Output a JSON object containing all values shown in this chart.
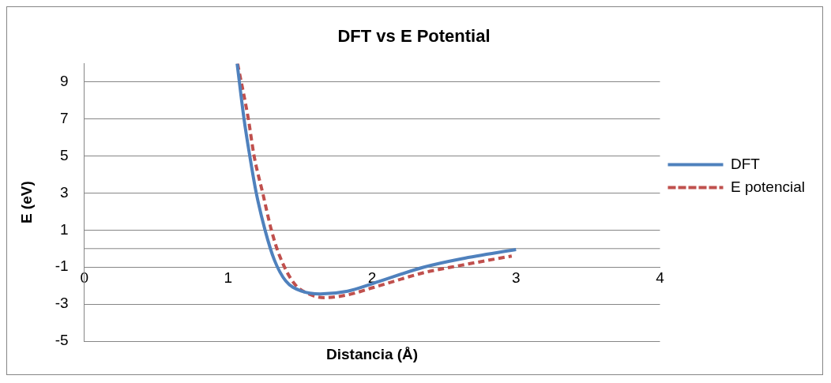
{
  "chart_data": {
    "type": "line",
    "title": "DFT vs E Potential",
    "xlabel": "Distancia (Å)",
    "ylabel": "E (eV)",
    "xlim": [
      0,
      4
    ],
    "xticks": [
      0,
      1,
      2,
      3,
      4
    ],
    "ylim": [
      -5,
      10
    ],
    "yticks": [
      -5,
      -3,
      -1,
      1,
      3,
      5,
      7,
      9
    ],
    "grid": "y",
    "legend": "right",
    "marker": "none",
    "ref_lines": [
      {
        "axis": "y",
        "value": 0,
        "label": null,
        "color": "#868686"
      }
    ],
    "series": [
      {
        "name": "DFT",
        "color": "#4f81bd",
        "line_style": "solid",
        "x": [
          1.062,
          1.11,
          1.15,
          1.195,
          1.256,
          1.32,
          1.4,
          1.51,
          1.64,
          1.83,
          2.0,
          2.36,
          2.62,
          3.0
        ],
        "values": [
          10,
          7,
          5,
          3,
          1,
          -0.6,
          -1.75,
          -2.3,
          -2.45,
          -2.3,
          -1.9,
          -1.0,
          -0.55,
          -0.05
        ]
      },
      {
        "name": "E potencial",
        "color": "#c0504d",
        "line_style": "dashed",
        "x": [
          1.065,
          1.14,
          1.18,
          1.24,
          1.3,
          1.36,
          1.46,
          1.56,
          1.67,
          1.83,
          2.01,
          2.36,
          2.62,
          2.97
        ],
        "values": [
          10,
          7,
          5,
          3,
          1,
          -0.45,
          -1.9,
          -2.45,
          -2.65,
          -2.5,
          -2.1,
          -1.3,
          -0.9,
          -0.4
        ]
      }
    ]
  }
}
